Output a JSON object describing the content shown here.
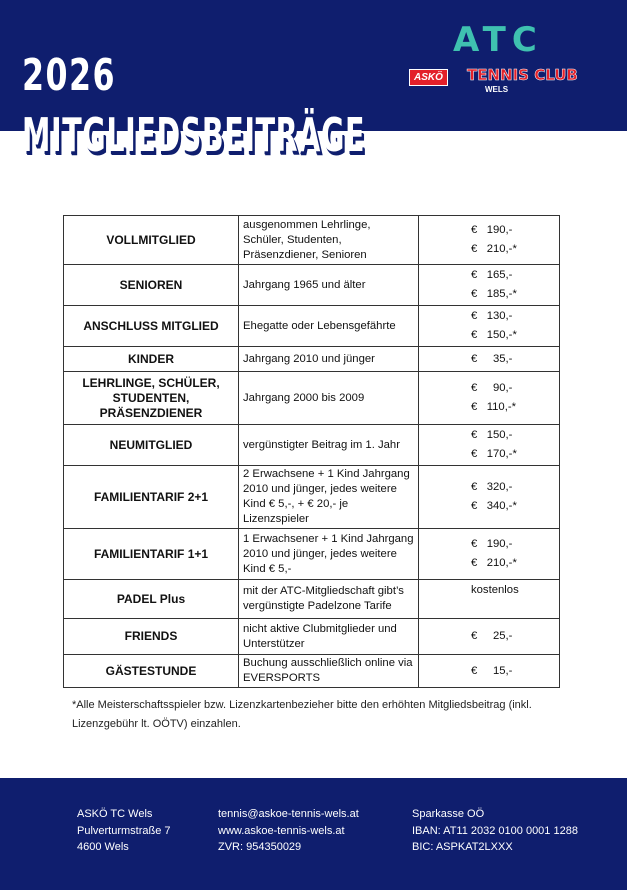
{
  "header": {
    "year": "2026",
    "title": "MITGLIEDSBEITRÄGE",
    "logo": {
      "mark": "ATC",
      "badge": "ASKÖ",
      "name": "TENNIS CLUB",
      "city": "WELS"
    }
  },
  "table": [
    {
      "category": "VOLLMITGLIED",
      "description": "ausgenommen Lehrlinge, Schüler, Studenten, Präsenzdiener, Senioren",
      "prices": [
        "€   190,-",
        "€   210,-*"
      ]
    },
    {
      "category": "SENIOREN",
      "description": "Jahrgang 1965 und älter",
      "prices": [
        "€   165,-",
        "€   185,-*"
      ]
    },
    {
      "category": "ANSCHLUSS MITGLIED",
      "description": "Ehegatte oder Lebensgefährte",
      "prices": [
        "€   130,-",
        "€   150,-*"
      ]
    },
    {
      "category": "KINDER",
      "description": "Jahrgang 2010 und jünger",
      "prices": [
        "€     35,-"
      ]
    },
    {
      "category": "LEHRLINGE, SCHÜLER, STUDENTEN, PRÄSENZDIENER",
      "description": "Jahrgang 2000 bis 2009",
      "prices": [
        "€     90,-",
        "€   110,-*"
      ]
    },
    {
      "category": "NEUMITGLIED",
      "description": "vergünstigter Beitrag im 1. Jahr",
      "prices": [
        "€   150,-",
        "€   170,-*"
      ]
    },
    {
      "category": "FAMILIENTARIF 2+1",
      "description": "2 Erwachsene + 1 Kind Jahrgang 2010 und jünger, jedes weitere Kind € 5,-, + € 20,- je Lizenzspieler",
      "prices": [
        "€   320,-",
        "€   340,-*"
      ]
    },
    {
      "category": "FAMILIENTARIF 1+1",
      "description": "1 Erwachsener + 1 Kind Jahrgang 2010 und jünger, jedes weitere Kind € 5,-",
      "prices": [
        "€   190,-",
        "€   210,-*"
      ]
    },
    {
      "category": "PADEL Plus",
      "description": "mit der ATC-Mitgliedschaft gibt’s vergünstigte Padelzone Tarife",
      "prices": [
        "kostenlos"
      ]
    },
    {
      "category": "FRIENDS",
      "description": "nicht aktive Clubmitglieder und Unterstützer",
      "prices": [
        "€     25,-"
      ]
    },
    {
      "category": "GÄSTESTUNDE",
      "description": "Buchung ausschließlich online via EVERSPORTS",
      "prices": [
        "€     15,-"
      ]
    }
  ],
  "note": "*Alle Meisterschaftsspieler bzw. Lizenzkartenbezieher bitte den erhöhten Mitgliedsbeitrag (inkl. Lizenzgebühr lt. OÖTV) einzahlen.",
  "footer": {
    "address": [
      "ASKÖ TC Wels",
      "Pulverturmstraße 7",
      "4600 Wels"
    ],
    "contact": [
      "tennis@askoe-tennis-wels.at",
      "www.askoe-tennis-wels.at",
      "ZVR: 954350029"
    ],
    "bank": [
      "Sparkasse OÖ",
      "IBAN: AT11 2032 0100 0001 1288",
      "BIC: ASPKAT2LXXX"
    ]
  },
  "colors": {
    "navy": "#0f1e6e",
    "teal": "#3fc1b0",
    "red": "#e3202a"
  }
}
